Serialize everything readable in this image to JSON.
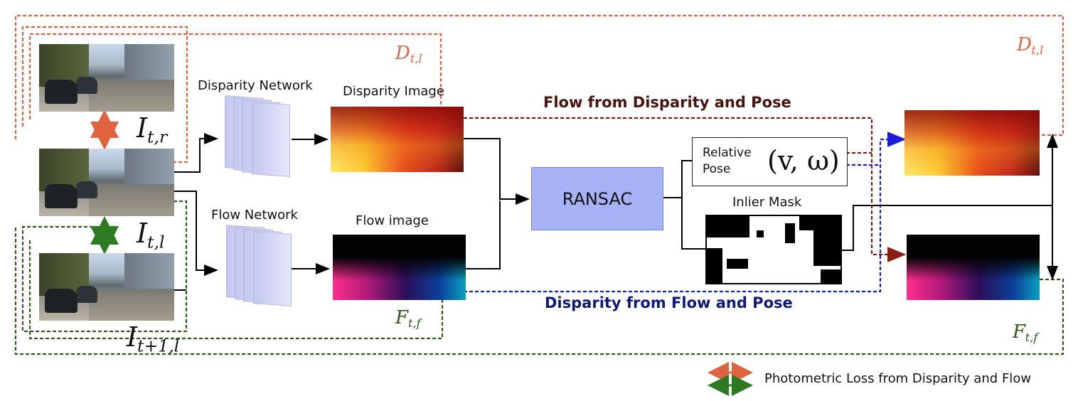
{
  "networks": {
    "disparity": "Disparity Network",
    "flow": "Flow Network"
  },
  "images": {
    "disparity": "Disparity Image",
    "flow": "Flow image",
    "inlier": "Inlier Mask"
  },
  "ransac": "RANSAC",
  "relative_pose": {
    "line1": "Relative",
    "line2": "Pose",
    "symbol": "(v, ω)"
  },
  "captions": {
    "top": "Flow from Disparity and Pose",
    "bottom": "Disparity from Flow and Pose"
  },
  "symbols": {
    "i_tr": {
      "base": "I",
      "sub": "t,r"
    },
    "i_tl": {
      "base": "I",
      "sub": "t,l"
    },
    "i_t1l": {
      "base": "I",
      "sub": "t+1,l"
    },
    "d_tl": {
      "base": "D",
      "sub": "t,l"
    },
    "d_tl_prime": {
      "base": "D",
      "sub": "t,l",
      "sup": "′"
    },
    "f_tf": {
      "base": "F",
      "sub": "t,f"
    },
    "f_tf_prime": {
      "base": "F",
      "sub": "t,f",
      "sup": "′"
    }
  },
  "legend": {
    "text": "Photometric Loss from Disparity and Flow"
  },
  "colors": {
    "orange": "#e0623f",
    "green": "#2f5a1c",
    "dark_red": "#7a1b12",
    "blue": "#1b1bd8",
    "ransac_fill": "#a7b1f6",
    "caption_top": "#4a140e",
    "caption_bottom": "#0f1a78"
  }
}
